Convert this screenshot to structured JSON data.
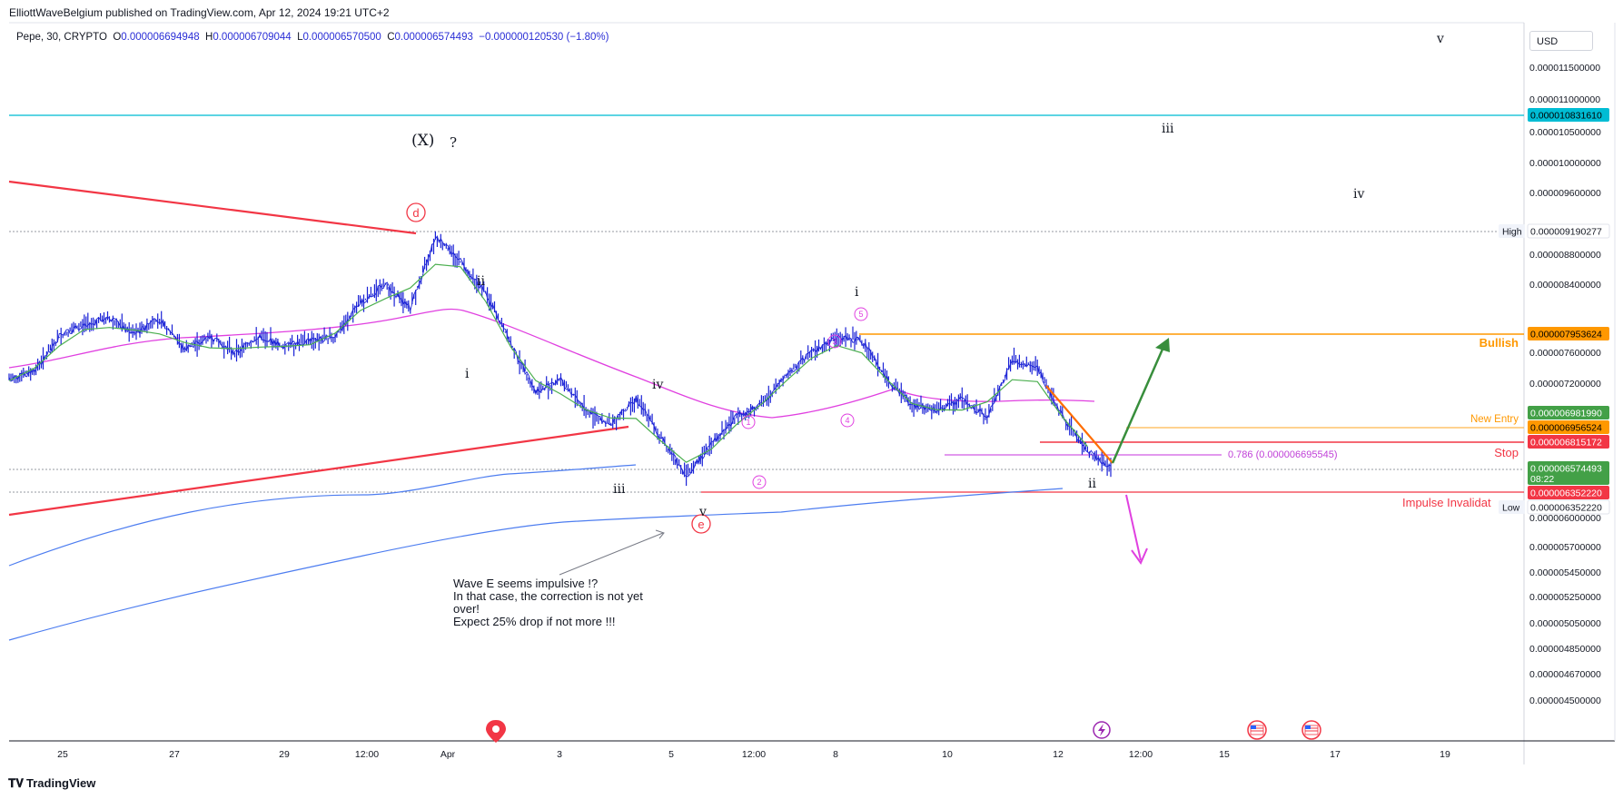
{
  "header": {
    "publisher": "ElliottWaveBelgium published on TradingView.com, Apr 12, 2024 19:21 UTC+2",
    "symbol": "Pepe, 30, CRYPTO",
    "ohlc": {
      "o_label": "O",
      "o": "0.000006694948",
      "h_label": "H",
      "h": "0.000006709044",
      "l_label": "L",
      "l": "0.000006570500",
      "c_label": "C",
      "c": "0.000006574493",
      "change": "−0.000000120530 (−1.80%)"
    },
    "currency": "USD"
  },
  "footer": {
    "brand": "TradingView"
  },
  "chart_data": {
    "type": "line",
    "title": "Pepe, 30, CRYPTO",
    "x_ticks": [
      "25",
      "27",
      "29",
      "12:00",
      "Apr",
      "3",
      "5",
      "12:00",
      "8",
      "10",
      "12",
      "12:00",
      "15",
      "17",
      "19"
    ],
    "y_ticks": [
      "0.000011500000",
      "0.000011000000",
      "0.000010500000",
      "0.000010000000",
      "0.000009600000",
      "0.000008800000",
      "0.000008400000",
      "0.000007600000",
      "0.000007200000",
      "0.000006000000",
      "0.000005700000",
      "0.000005450000",
      "0.000005250000",
      "0.000005050000",
      "0.000004850000",
      "0.000004670000",
      "0.000004500000"
    ],
    "ylim": [
      4.5e-06,
      1.18e-05
    ],
    "price_series": {
      "name": "Pepe",
      "color": "#1a22d6",
      "x": [
        "Mar 24 00:00",
        "Mar 24 12:00",
        "Mar 25 00:00",
        "Mar 25 12:00",
        "Mar 26 00:00",
        "Mar 26 12:00",
        "Mar 27 00:00",
        "Mar 27 12:00",
        "Mar 28 00:00",
        "Mar 28 12:00",
        "Mar 29 00:00",
        "Mar 29 12:00",
        "Mar 30 00:00",
        "Mar 30 12:00",
        "Mar 31 00:00",
        "Mar 31 06:00",
        "Mar 31 12:00",
        "Mar 31 18:00",
        "Apr 1 00:00",
        "Apr 1 06:00",
        "Apr 1 12:00",
        "Apr 2 00:00",
        "Apr 2 12:00",
        "Apr 3 00:00",
        "Apr 3 12:00",
        "Apr 4 00:00",
        "Apr 4 12:00",
        "Apr 5 00:00",
        "Apr 5 12:00",
        "Apr 6 00:00",
        "Apr 6 12:00",
        "Apr 7 00:00",
        "Apr 7 12:00",
        "Apr 8 00:00",
        "Apr 8 12:00",
        "Apr 9 00:00",
        "Apr 9 12:00",
        "Apr 10 00:00",
        "Apr 10 12:00",
        "Apr 11 00:00",
        "Apr 11 12:00",
        "Apr 12 00:00",
        "Apr 12 12:00",
        "Apr 12 18:00",
        "Apr 12 19:00"
      ],
      "values": [
        7.3,
        7.4,
        7.9,
        8.05,
        8.1,
        7.95,
        8.1,
        7.7,
        7.9,
        7.65,
        7.9,
        7.75,
        7.85,
        7.9,
        8.25,
        8.45,
        8.2,
        9.12,
        8.75,
        8.35,
        7.8,
        7.15,
        7.3,
        7.0,
        6.9,
        7.1,
        6.8,
        6.5,
        6.75,
        6.95,
        7.05,
        7.35,
        7.65,
        7.9,
        7.85,
        7.3,
        7.05,
        7.0,
        7.1,
        6.95,
        7.55,
        7.45,
        6.95,
        6.7,
        6.574
      ]
    },
    "ma_fast": {
      "name": "",
      "color": "#4caf50"
    },
    "ma_slow": {
      "name": "",
      "color": "#e040e0"
    },
    "ma_long": {
      "name": "",
      "color": "#4d7df0"
    },
    "price_labels": [
      {
        "text": "0.000010831610",
        "bg": "#00bcd4",
        "fg": "#000000"
      },
      {
        "text": "0.000009190277",
        "bg": "#ffffff",
        "fg": "#131722",
        "tag": "High"
      },
      {
        "text": "0.000007953624",
        "bg": "#ff9800",
        "fg": "#000000"
      },
      {
        "text": "0.000006981990",
        "bg": "#43a047",
        "fg": "#ffffff"
      },
      {
        "text": "0.000006956524",
        "bg": "#ff9800",
        "fg": "#000000"
      },
      {
        "text": "0.000006815172",
        "bg": "#f23645",
        "fg": "#ffffff"
      },
      {
        "text": "0.000006574493",
        "bg": "#43a047",
        "fg": "#ffffff",
        "sub": "08:22"
      },
      {
        "text": "0.000006352220",
        "bg": "#f23645",
        "fg": "#ffffff"
      },
      {
        "text": "0.000006352220",
        "bg": "#ffffff",
        "fg": "#131722",
        "tag": "Low"
      }
    ],
    "levels": {
      "bullish": "Bullish",
      "new_entry": "New Entry",
      "stop": "Stop",
      "impulse_invalid": "Impulse Invalidat",
      "fib": "0.786 (0.000006695545)"
    },
    "wave_labels": {
      "X": "(X)",
      "q": "?",
      "d": "d",
      "e": "e",
      "ii_a": "ii",
      "i_a": "i",
      "iv_a": "iv",
      "iii_a": "iii",
      "v_a": "v",
      "i_b": "i",
      "c1": "1",
      "c2": "2",
      "c3": "3",
      "c4": "4",
      "c5": "5",
      "ii_b": "ii",
      "iii_b": "iii",
      "iv_b": "iv",
      "v_b": "v"
    },
    "annotation": {
      "line1": "Wave E seems impulsive !?",
      "line2": "In that case, the correction is not yet",
      "line3": "over!",
      "line4": "Expect 25% drop if not more !!!"
    }
  }
}
